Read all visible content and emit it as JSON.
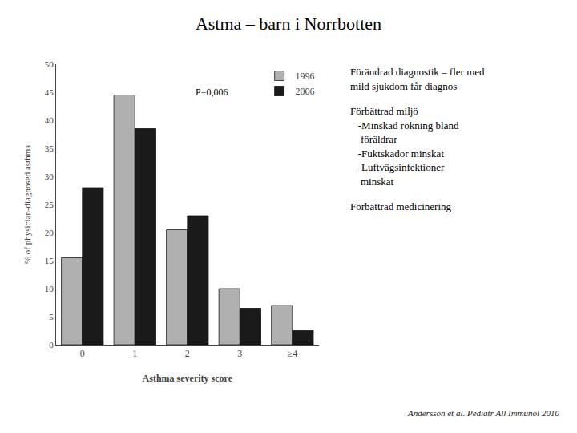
{
  "chart_data": {
    "type": "bar",
    "title": "Astma – barn i Norrbotten",
    "categories": [
      "0",
      "1",
      "2",
      "3",
      "≥4"
    ],
    "series": [
      {
        "name": "1996",
        "color": "#b0b0b0",
        "values": [
          15.5,
          44.5,
          20.5,
          10.0,
          7.0
        ]
      },
      {
        "name": "2006",
        "color": "#1a1a1a",
        "values": [
          28.0,
          38.5,
          23.0,
          6.5,
          2.5
        ]
      }
    ],
    "xlabel": "Asthma severity score",
    "ylabel": "% of physician-diagnosed asthma",
    "ylim": [
      0,
      50
    ],
    "yticks": [
      0,
      5,
      10,
      15,
      20,
      25,
      30,
      35,
      40,
      45,
      50
    ],
    "grid": false,
    "legend": "upper right",
    "annotations": [
      "P=0,006"
    ],
    "side_text": [
      [
        "Förändrad diagnostik – fler med",
        "mild sjukdom får diagnos"
      ],
      [
        "Förbättrad miljö",
        "   -Minskad rökning bland",
        "    föräldrar",
        "   -Fuktskador minskat",
        "   -Luftvägsinfektioner",
        "    minskat"
      ],
      [
        "Förbättrad medicinering"
      ]
    ],
    "footnote": "Andersson et al. Pediatr All Immunol 2010"
  }
}
